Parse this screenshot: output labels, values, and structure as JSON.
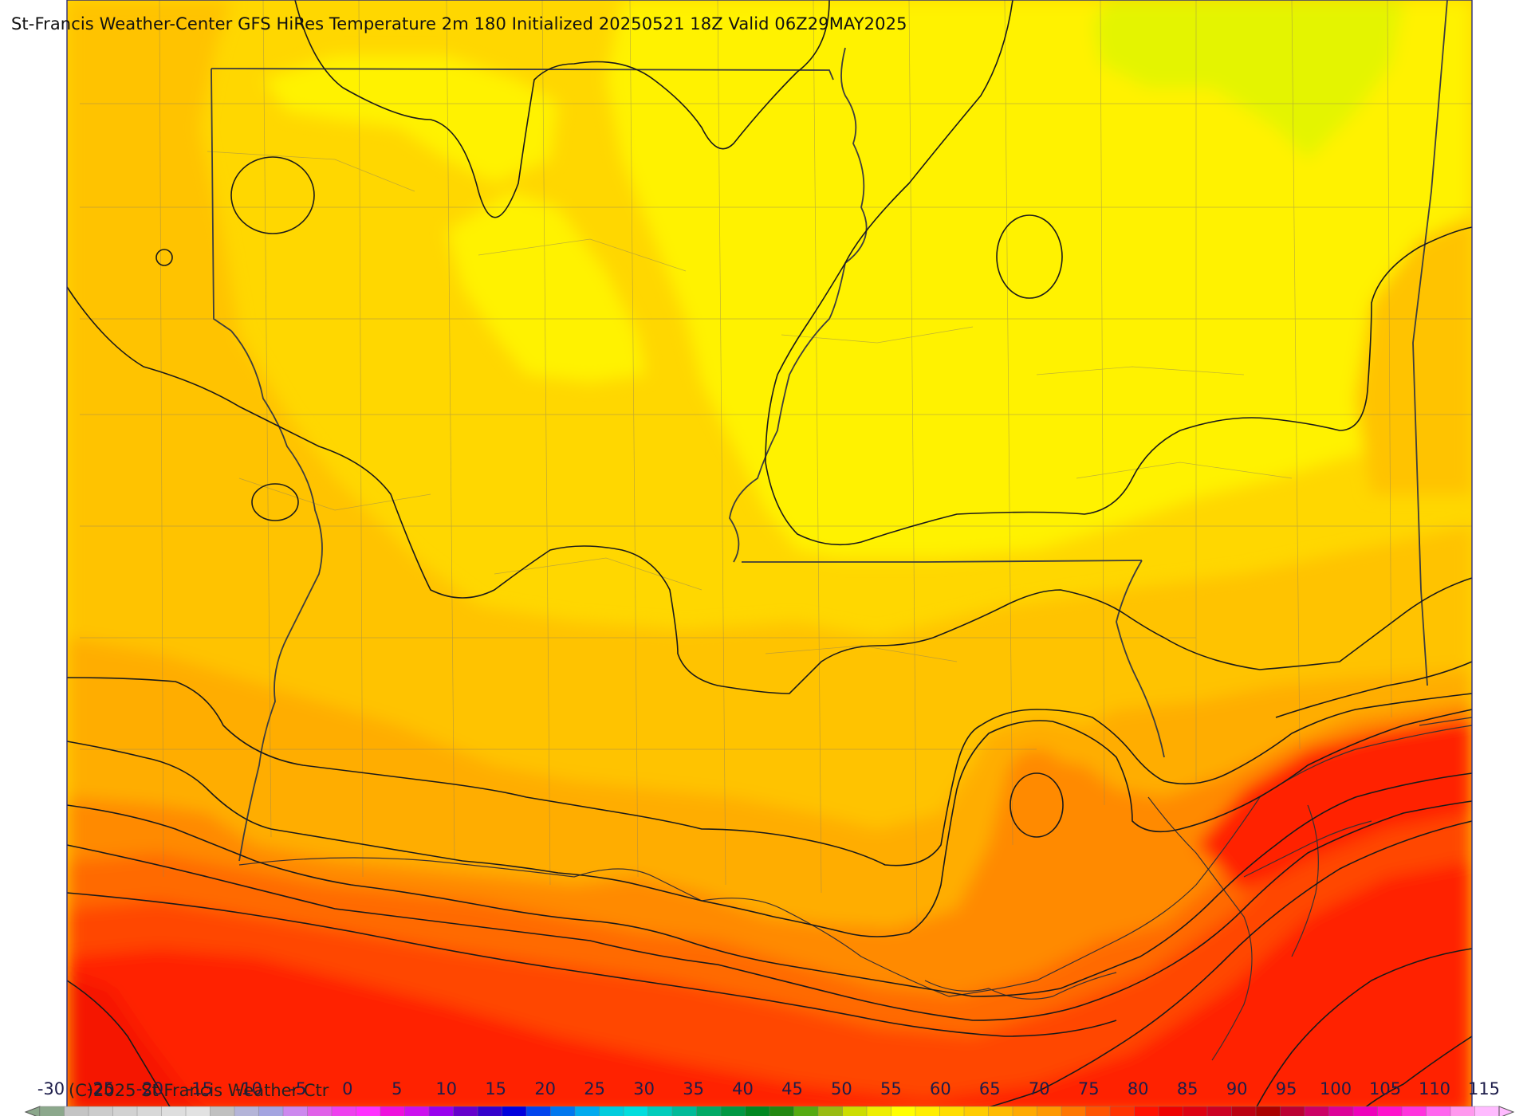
{
  "title": "St-Francis Weather-Center GFS HiRes Temperature 2m  180 Initialized 20250521 18Z Valid 06Z29MAY2025",
  "copyright": "(C)2025 St Francis Weather Ctr",
  "colorbar": {
    "labels": [
      "-30",
      "-25",
      "-20",
      "-15",
      "-10",
      "-5",
      "0",
      "5",
      "10",
      "15",
      "20",
      "25",
      "30",
      "35",
      "40",
      "45",
      "50",
      "55",
      "60",
      "65",
      "70",
      "75",
      "80",
      "85",
      "90",
      "95",
      "100",
      "105",
      "110",
      "115"
    ],
    "colors": [
      "#8ca88c",
      "#c4c4c4",
      "#cccccc",
      "#d2d2d2",
      "#d8d8d8",
      "#dedede",
      "#e2e2e2",
      "#c0c0c0",
      "#b4b4d8",
      "#a4a4e0",
      "#cc88ee",
      "#e060e8",
      "#ee40ee",
      "#ff30ff",
      "#ee10dd",
      "#cc10ee",
      "#9900ee",
      "#6600cc",
      "#3300cc",
      "#0000dd",
      "#0044ee",
      "#0077ee",
      "#00aaee",
      "#00ccdd",
      "#00dddd",
      "#00ccbb",
      "#00bb99",
      "#00aa66",
      "#009944",
      "#008822",
      "#228811",
      "#55aa11",
      "#99bb11",
      "#ccdd00",
      "#eeee00",
      "#ffff00",
      "#ffee00",
      "#ffdd00",
      "#ffcc00",
      "#ffbb00",
      "#ffaa00",
      "#ff9900",
      "#ff7700",
      "#ff5500",
      "#ff3300",
      "#ff1100",
      "#ee0000",
      "#dd0011",
      "#cc0022",
      "#bb0011",
      "#aa0000",
      "#bb0033",
      "#cc0066",
      "#dd0099",
      "#ee00bb",
      "#ff11cc",
      "#ff33dd",
      "#ff66ee",
      "#ff99ee",
      "#ffbbff"
    ]
  },
  "field_colors": {
    "yellow_green": "#e4f400",
    "yellow": "#fff200",
    "gold": "#ffd700",
    "amber": "#ffc300",
    "orange_light": "#ffad00",
    "orange": "#ff8a00",
    "orange_dark": "#ff6a00",
    "red_orange": "#ff4600",
    "red": "#ff2400",
    "deep_red": "#f51200"
  }
}
